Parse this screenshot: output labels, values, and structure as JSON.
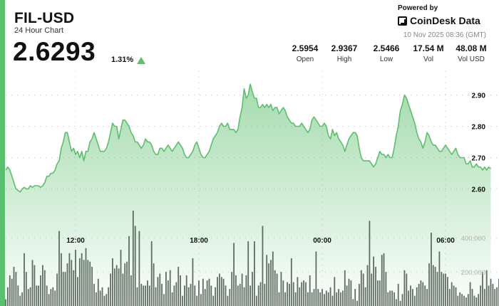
{
  "header": {
    "symbol": "FIL-USD",
    "subtitle": "24 Hour Chart",
    "price": "2.6293",
    "change": "1.31%",
    "powered_by": "Powered by",
    "brand": "CoinDesk Data",
    "timestamp": "10 Nov 2025 08:36 (GMT)"
  },
  "stats": [
    {
      "value": "2.5954",
      "label": "Open"
    },
    {
      "value": "2.9367",
      "label": "High"
    },
    {
      "value": "2.5466",
      "label": "Low"
    },
    {
      "value": "17.54 M",
      "label": "Vol"
    },
    {
      "value": "48.08 M",
      "label": "Vol USD"
    }
  ],
  "colors": {
    "accent": "#5bc06e",
    "line": "#5cbf6d",
    "volume_bar": "#4a5a4d"
  },
  "icons": {
    "change_direction": "up-triangle-icon",
    "brand_logo": "coindesk-logo-icon"
  },
  "chart_data": {
    "type": "area",
    "price_axis": {
      "ticks": [
        "2.90",
        "2.80",
        "2.70",
        "2.60"
      ],
      "ylim": [
        2.535,
        2.99
      ]
    },
    "volume_axis": {
      "ticks": [
        "400,000",
        "200,000"
      ],
      "ylim": [
        0,
        760000
      ]
    },
    "x_ticks": [
      {
        "label": "12:00",
        "x": 12
      },
      {
        "label": "18:00",
        "x": 18
      },
      {
        "label": "00:00",
        "x": 24
      },
      {
        "label": "06:00",
        "x": 30
      }
    ],
    "x_range": [
      8.6,
      32.6
    ],
    "grid": true,
    "series": [
      {
        "type": "area",
        "x_start": 8.6,
        "x_step": 0.1,
        "values": [
          2.66,
          2.67,
          2.66,
          2.64,
          2.62,
          2.6,
          2.595,
          2.59,
          2.6,
          2.605,
          2.6,
          2.6,
          2.61,
          2.605,
          2.61,
          2.61,
          2.61,
          2.605,
          2.61,
          2.62,
          2.64,
          2.64,
          2.65,
          2.65,
          2.66,
          2.68,
          2.69,
          2.73,
          2.75,
          2.78,
          2.78,
          2.75,
          2.72,
          2.73,
          2.71,
          2.72,
          2.7,
          2.72,
          2.69,
          2.72,
          2.72,
          2.75,
          2.76,
          2.78,
          2.76,
          2.74,
          2.72,
          2.72,
          2.72,
          2.73,
          2.75,
          2.78,
          2.81,
          2.8,
          2.8,
          2.76,
          2.79,
          2.82,
          2.82,
          2.81,
          2.8,
          2.78,
          2.77,
          2.75,
          2.75,
          2.74,
          2.73,
          2.74,
          2.76,
          2.75,
          2.75,
          2.74,
          2.72,
          2.71,
          2.71,
          2.73,
          2.73,
          2.72,
          2.73,
          2.74,
          2.73,
          2.72,
          2.73,
          2.74,
          2.75,
          2.74,
          2.73,
          2.71,
          2.7,
          2.7,
          2.71,
          2.72,
          2.74,
          2.75,
          2.73,
          2.71,
          2.7,
          2.7,
          2.71,
          2.72,
          2.74,
          2.76,
          2.77,
          2.78,
          2.8,
          2.81,
          2.8,
          2.8,
          2.81,
          2.79,
          2.79,
          2.79,
          2.78,
          2.79,
          2.83,
          2.86,
          2.92,
          2.89,
          2.9,
          2.935,
          2.91,
          2.89,
          2.89,
          2.86,
          2.86,
          2.87,
          2.86,
          2.87,
          2.86,
          2.87,
          2.85,
          2.86,
          2.86,
          2.84,
          2.85,
          2.86,
          2.85,
          2.83,
          2.82,
          2.81,
          2.81,
          2.8,
          2.8,
          2.8,
          2.81,
          2.8,
          2.79,
          2.78,
          2.79,
          2.82,
          2.83,
          2.82,
          2.81,
          2.8,
          2.8,
          2.81,
          2.8,
          2.77,
          2.76,
          2.79,
          2.77,
          2.78,
          2.76,
          2.75,
          2.74,
          2.72,
          2.74,
          2.76,
          2.77,
          2.78,
          2.78,
          2.77,
          2.73,
          2.7,
          2.69,
          2.69,
          2.69,
          2.69,
          2.68,
          2.67,
          2.68,
          2.7,
          2.72,
          2.71,
          2.71,
          2.7,
          2.71,
          2.7,
          2.7,
          2.73,
          2.77,
          2.8,
          2.85,
          2.87,
          2.9,
          2.89,
          2.87,
          2.85,
          2.83,
          2.81,
          2.78,
          2.76,
          2.75,
          2.73,
          2.75,
          2.78,
          2.77,
          2.75,
          2.74,
          2.74,
          2.73,
          2.72,
          2.72,
          2.73,
          2.74,
          2.73,
          2.72,
          2.71,
          2.72,
          2.73,
          2.71,
          2.7,
          2.7,
          2.7,
          2.68,
          2.68,
          2.69,
          2.67,
          2.67,
          2.68,
          2.67,
          2.67,
          2.66,
          2.67,
          2.66,
          2.67,
          2.665
        ]
      },
      {
        "type": "bar",
        "name": "Vol",
        "x_start": 8.6,
        "x_step": 0.1,
        "values": [
          40000,
          110000,
          180000,
          160000,
          230000,
          200000,
          120000,
          60000,
          80000,
          310000,
          200000,
          100000,
          110000,
          270000,
          240000,
          120000,
          120000,
          180000,
          240000,
          210000,
          120000,
          70000,
          100000,
          110000,
          90000,
          190000,
          440000,
          310000,
          200000,
          200000,
          250000,
          310000,
          270000,
          210000,
          330000,
          170000,
          280000,
          310000,
          270000,
          340000,
          270000,
          260000,
          230000,
          130000,
          80000,
          160000,
          90000,
          110000,
          60000,
          70000,
          110000,
          190000,
          280000,
          220000,
          240000,
          220000,
          330000,
          190000,
          250000,
          260000,
          410000,
          180000,
          560000,
          470000,
          110000,
          440000,
          130000,
          120000,
          120000,
          150000,
          120000,
          380000,
          250000,
          110000,
          170000,
          190000,
          130000,
          70000,
          200000,
          150000,
          210000,
          80000,
          120000,
          140000,
          230000,
          180000,
          60000,
          120000,
          180000,
          110000,
          130000,
          280000,
          120000,
          60000,
          150000,
          70000,
          160000,
          100000,
          150000,
          160000,
          120000,
          60000,
          110000,
          170000,
          190000,
          170000,
          160000,
          120000,
          60000,
          100000,
          200000,
          370000,
          180000,
          120000,
          130000,
          190000,
          110000,
          180000,
          380000,
          120000,
          200000,
          380000,
          60000,
          120000,
          140000,
          470000,
          130000,
          300000,
          250000,
          270000,
          320000,
          210000,
          190000,
          80000,
          200000,
          150000,
          80000,
          140000,
          130000,
          280000,
          140000,
          80000,
          170000,
          110000,
          140000,
          150000,
          140000,
          80000,
          180000,
          80000,
          100000,
          320000,
          100000,
          80000,
          100000,
          70000,
          90000,
          80000,
          110000,
          60000,
          170000,
          80000,
          100000,
          80000,
          90000,
          210000,
          120000,
          160000,
          150000,
          40000,
          100000,
          30000,
          130000,
          210000,
          190000,
          110000,
          240000,
          500000,
          190000,
          290000,
          230000,
          150000,
          150000,
          300000,
          310000,
          200000,
          80000,
          90000,
          90000,
          80000,
          40000,
          130000,
          30000,
          70000,
          210000,
          190000,
          90000,
          120000,
          100000,
          60000,
          110000,
          130000,
          150000,
          140000,
          120000,
          100000,
          250000,
          430000,
          240000,
          230000,
          200000,
          320000,
          200000,
          190000,
          190000,
          170000,
          100000,
          140000,
          120000,
          110000,
          60000,
          80000,
          70000,
          60000,
          50000,
          70000,
          140000,
          100000,
          60000,
          50000,
          70000,
          120000,
          200000,
          100000,
          210000,
          120000,
          160000,
          130000,
          100000,
          110000,
          160000
        ]
      }
    ]
  }
}
